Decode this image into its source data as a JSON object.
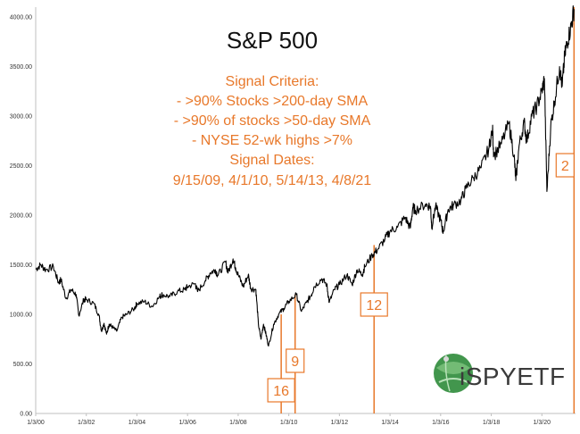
{
  "chart_data": {
    "type": "line",
    "title": "S&P 500",
    "xlabel": "",
    "ylabel": "",
    "ylim": [
      0,
      4100
    ],
    "y_ticks": [
      "0.00",
      "500.00",
      "1000.00",
      "1500.00",
      "2000.00",
      "2500.00",
      "3000.00",
      "3500.00",
      "4000.00"
    ],
    "x_ticks": [
      "1/3/00",
      "1/3/02",
      "1/3/04",
      "1/3/06",
      "1/3/08",
      "1/3/10",
      "1/3/12",
      "1/3/14",
      "1/3/16",
      "1/3/18",
      "1/3/20"
    ],
    "grid": false,
    "series": [
      {
        "values": [
          [
            2000.0,
            1455
          ],
          [
            2000.2,
            1500
          ],
          [
            2000.4,
            1450
          ],
          [
            2000.7,
            1480
          ],
          [
            2000.9,
            1320
          ],
          [
            2001.0,
            1350
          ],
          [
            2001.2,
            1160
          ],
          [
            2001.4,
            1250
          ],
          [
            2001.6,
            1200
          ],
          [
            2001.7,
            990
          ],
          [
            2001.9,
            1150
          ],
          [
            2002.0,
            1150
          ],
          [
            2002.3,
            1110
          ],
          [
            2002.5,
            990
          ],
          [
            2002.6,
            830
          ],
          [
            2002.7,
            910
          ],
          [
            2002.8,
            800
          ],
          [
            2002.9,
            900
          ],
          [
            2003.0,
            880
          ],
          [
            2003.2,
            830
          ],
          [
            2003.4,
            970
          ],
          [
            2003.6,
            1000
          ],
          [
            2003.9,
            1060
          ],
          [
            2004.0,
            1110
          ],
          [
            2004.3,
            1130
          ],
          [
            2004.6,
            1080
          ],
          [
            2004.9,
            1180
          ],
          [
            2005.0,
            1200
          ],
          [
            2005.3,
            1180
          ],
          [
            2005.6,
            1230
          ],
          [
            2005.9,
            1250
          ],
          [
            2006.0,
            1280
          ],
          [
            2006.3,
            1310
          ],
          [
            2006.4,
            1230
          ],
          [
            2006.7,
            1340
          ],
          [
            2006.9,
            1420
          ],
          [
            2007.1,
            1450
          ],
          [
            2007.2,
            1390
          ],
          [
            2007.5,
            1530
          ],
          [
            2007.6,
            1420
          ],
          [
            2007.8,
            1560
          ],
          [
            2007.9,
            1470
          ],
          [
            2008.0,
            1400
          ],
          [
            2008.2,
            1280
          ],
          [
            2008.4,
            1400
          ],
          [
            2008.5,
            1260
          ],
          [
            2008.7,
            1250
          ],
          [
            2008.8,
            900
          ],
          [
            2008.9,
            750
          ],
          [
            2009.0,
            900
          ],
          [
            2009.1,
            800
          ],
          [
            2009.2,
            680
          ],
          [
            2009.4,
            900
          ],
          [
            2009.6,
            1000
          ],
          [
            2009.8,
            1060
          ],
          [
            2010.0,
            1130
          ],
          [
            2010.3,
            1200
          ],
          [
            2010.5,
            1030
          ],
          [
            2010.7,
            1120
          ],
          [
            2010.9,
            1200
          ],
          [
            2011.0,
            1280
          ],
          [
            2011.3,
            1360
          ],
          [
            2011.5,
            1300
          ],
          [
            2011.6,
            1120
          ],
          [
            2011.8,
            1250
          ],
          [
            2012.0,
            1300
          ],
          [
            2012.3,
            1400
          ],
          [
            2012.5,
            1300
          ],
          [
            2012.7,
            1450
          ],
          [
            2012.9,
            1400
          ],
          [
            2013.0,
            1480
          ],
          [
            2013.3,
            1600
          ],
          [
            2013.5,
            1650
          ],
          [
            2013.8,
            1760
          ],
          [
            2014.0,
            1840
          ],
          [
            2014.3,
            1880
          ],
          [
            2014.6,
            1980
          ],
          [
            2014.8,
            1870
          ],
          [
            2014.9,
            2080
          ],
          [
            2015.0,
            2050
          ],
          [
            2015.4,
            2110
          ],
          [
            2015.6,
            2090
          ],
          [
            2015.65,
            1880
          ],
          [
            2015.8,
            2090
          ],
          [
            2016.0,
            1950
          ],
          [
            2016.1,
            1830
          ],
          [
            2016.3,
            2060
          ],
          [
            2016.5,
            2100
          ],
          [
            2016.8,
            2150
          ],
          [
            2017.0,
            2270
          ],
          [
            2017.3,
            2380
          ],
          [
            2017.6,
            2480
          ],
          [
            2017.9,
            2670
          ],
          [
            2018.05,
            2870
          ],
          [
            2018.1,
            2600
          ],
          [
            2018.4,
            2720
          ],
          [
            2018.7,
            2930
          ],
          [
            2018.9,
            2600
          ],
          [
            2018.97,
            2350
          ],
          [
            2019.1,
            2700
          ],
          [
            2019.3,
            2940
          ],
          [
            2019.4,
            2750
          ],
          [
            2019.6,
            3000
          ],
          [
            2019.8,
            3100
          ],
          [
            2020.0,
            3250
          ],
          [
            2020.1,
            3380
          ],
          [
            2020.2,
            2240
          ],
          [
            2020.35,
            2900
          ],
          [
            2020.5,
            3150
          ],
          [
            2020.7,
            3500
          ],
          [
            2020.8,
            3300
          ],
          [
            2020.9,
            3600
          ],
          [
            2021.0,
            3750
          ],
          [
            2021.15,
            3900
          ],
          [
            2021.27,
            4080
          ]
        ]
      }
    ],
    "signal_lines": [
      {
        "date": 2009.7,
        "label": "16"
      },
      {
        "date": 2010.25,
        "label": "9"
      },
      {
        "date": 2013.37,
        "label": "12"
      },
      {
        "date": 2021.27,
        "label": "2"
      }
    ]
  },
  "annotation": {
    "lines": [
      "Signal Criteria:",
      "- >90% Stocks >200-day SMA",
      "- >90% of stocks >50-day SMA",
      "- NYSE 52-wk highs >7%",
      "Signal Dates:",
      "9/15/09, 4/1/10, 5/14/13, 4/8/21"
    ]
  },
  "logo": {
    "text": "iSPYETF"
  },
  "colors": {
    "line": "#000000",
    "signal": "#e8782a",
    "axis": "#bfbfbf",
    "logo_green": "#2e8b3a"
  }
}
